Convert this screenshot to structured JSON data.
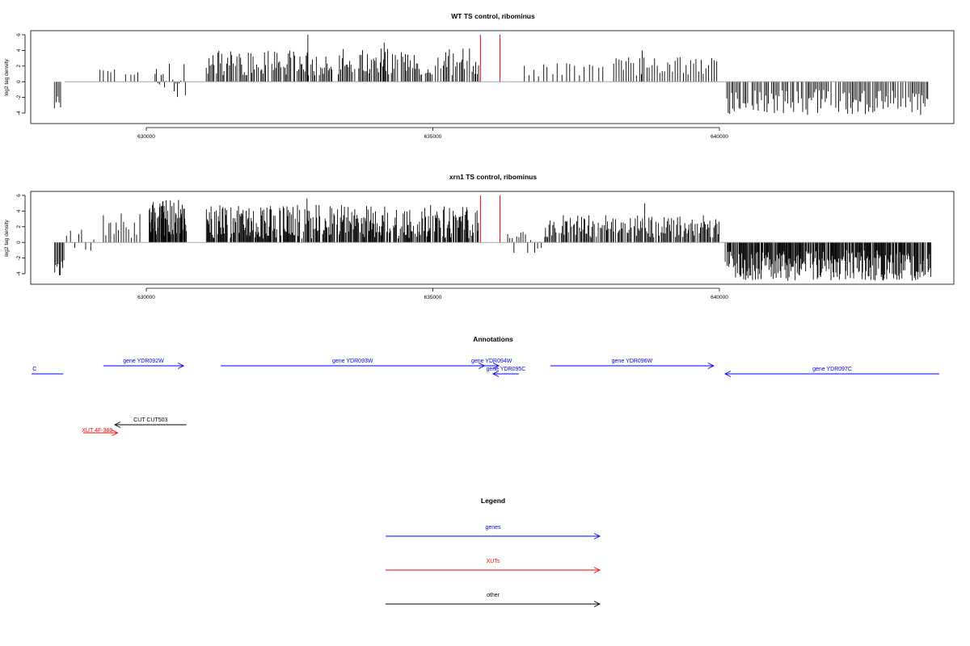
{
  "chart_data": [
    {
      "type": "bar",
      "title": "WT TS control, ribominus",
      "ylabel": "log2 tag density",
      "xlim": [
        628000,
        643750
      ],
      "ylim": [
        -5,
        6.5
      ],
      "yticks": [
        -4,
        -2,
        0,
        2,
        4,
        6
      ],
      "xticks": [
        630000,
        635000,
        640000
      ],
      "xtick_labels": [
        "630000",
        "635000",
        "640000"
      ],
      "bar_color": "#000000",
      "marker_color": "#ff0000",
      "markers": [
        {
          "x": 635830,
          "y": 6.0
        },
        {
          "x": 636170,
          "y": 6.0
        }
      ],
      "segments": [
        {
          "from": 628400,
          "to": 628520,
          "step": 25,
          "low": -3.7,
          "high": -1.6,
          "sign": -1
        },
        {
          "from": 629200,
          "to": 629450,
          "step": 60,
          "low": 1.2,
          "high": 1.8,
          "sign": 1
        },
        {
          "from": 629650,
          "to": 629900,
          "step": 70,
          "low": 0.8,
          "high": 1.6,
          "sign": 1
        },
        {
          "from": 630150,
          "to": 630700,
          "step": 28,
          "low": -2.3,
          "high": 3.4,
          "sign": 0
        },
        {
          "from": 631050,
          "to": 633000,
          "step": 22,
          "low": 0.8,
          "high": 4.0,
          "sign": 1
        },
        {
          "from": 632820,
          "to": 632830,
          "step": 20,
          "low": 6.0,
          "high": 6.0,
          "sign": 1
        },
        {
          "from": 633000,
          "to": 635800,
          "step": 22,
          "low": 0.8,
          "high": 4.3,
          "sign": 1
        },
        {
          "from": 634150,
          "to": 634160,
          "step": 20,
          "low": 5.0,
          "high": 5.0,
          "sign": 1
        },
        {
          "from": 636600,
          "to": 638000,
          "step": 80,
          "low": 0.6,
          "high": 2.4,
          "sign": 1
        },
        {
          "from": 638150,
          "to": 639950,
          "step": 45,
          "low": 0.8,
          "high": 3.2,
          "sign": 1
        },
        {
          "from": 638650,
          "to": 638660,
          "step": 20,
          "low": 4.0,
          "high": 4.0,
          "sign": 1
        },
        {
          "from": 640130,
          "to": 643650,
          "step": 26,
          "low": -4.3,
          "high": -0.9,
          "sign": -1
        }
      ]
    },
    {
      "type": "bar",
      "title": "xrn1 TS control, ribominus",
      "ylabel": "log2 tag density",
      "xlim": [
        628000,
        643750
      ],
      "ylim": [
        -5,
        6.5
      ],
      "yticks": [
        -4,
        -2,
        0,
        2,
        4,
        6
      ],
      "xticks": [
        630000,
        635000,
        640000
      ],
      "xtick_labels": [
        "630000",
        "635000",
        "640000"
      ],
      "bar_color": "#000000",
      "marker_color": "#ff0000",
      "markers": [
        {
          "x": 635830,
          "y": 6.0
        },
        {
          "x": 636170,
          "y": 6.0
        }
      ],
      "segments": [
        {
          "from": 628400,
          "to": 628560,
          "step": 20,
          "low": -4.6,
          "high": -2.0,
          "sign": -1
        },
        {
          "from": 628600,
          "to": 629100,
          "step": 70,
          "low": -2.2,
          "high": 2.2,
          "sign": 0
        },
        {
          "from": 629250,
          "to": 629900,
          "step": 45,
          "low": 0.5,
          "high": 3.8,
          "sign": 1
        },
        {
          "from": 630050,
          "to": 630700,
          "step": 9,
          "low": 0.8,
          "high": 5.5,
          "sign": 1
        },
        {
          "from": 631050,
          "to": 635800,
          "step": 13,
          "low": 0.5,
          "high": 4.8,
          "sign": 1
        },
        {
          "from": 632800,
          "to": 632810,
          "step": 20,
          "low": 5.6,
          "high": 5.6,
          "sign": 1
        },
        {
          "from": 636300,
          "to": 636900,
          "step": 40,
          "low": -1.4,
          "high": 1.6,
          "sign": 0
        },
        {
          "from": 636950,
          "to": 640000,
          "step": 18,
          "low": 0.6,
          "high": 3.6,
          "sign": 1
        },
        {
          "from": 638700,
          "to": 638710,
          "step": 20,
          "low": 5.0,
          "high": 5.0,
          "sign": 1
        },
        {
          "from": 640100,
          "to": 643700,
          "step": 12,
          "low": -4.9,
          "high": -1.0,
          "sign": -1
        }
      ]
    }
  ],
  "annotations": {
    "title": "Annotations",
    "features": [
      {
        "label": "C",
        "start": 628550,
        "end": 628000,
        "strand": "-",
        "color": "#0000ff",
        "row": 2,
        "show_arrow": false,
        "label_side": "left"
      },
      {
        "label": "gene YDR092W",
        "start": 629250,
        "end": 630650,
        "strand": "+",
        "color": "#0000ff",
        "row": 1
      },
      {
        "label": "gene YDR093W",
        "start": 631300,
        "end": 635900,
        "strand": "+",
        "color": "#0000ff",
        "row": 1
      },
      {
        "label": "gene YDR094W",
        "start": 635900,
        "end": 636150,
        "strand": "+",
        "color": "#0000ff",
        "row": 1
      },
      {
        "label": "gene YDR095C",
        "start": 636500,
        "end": 636050,
        "strand": "-",
        "color": "#0000ff",
        "row": 2
      },
      {
        "label": "gene YDR096W",
        "start": 637050,
        "end": 639900,
        "strand": "+",
        "color": "#0000ff",
        "row": 1
      },
      {
        "label": "gene YDR097C",
        "start": 643900,
        "end": 640100,
        "strand": "-",
        "color": "#0000ff",
        "row": 2
      },
      {
        "label": "CUT CUT503",
        "start": 630700,
        "end": 629450,
        "strand": "-",
        "color": "#000000",
        "row": 3
      },
      {
        "label": "XUT 4F-369",
        "start": 628900,
        "end": 629500,
        "strand": "+",
        "color": "#ff0000",
        "row": 4
      }
    ]
  },
  "legend": {
    "title": "Legend",
    "items": [
      {
        "label": "genes",
        "color": "#0000ff"
      },
      {
        "label": "XUTs",
        "color": "#ff0000"
      },
      {
        "label": "other",
        "color": "#000000"
      }
    ]
  }
}
